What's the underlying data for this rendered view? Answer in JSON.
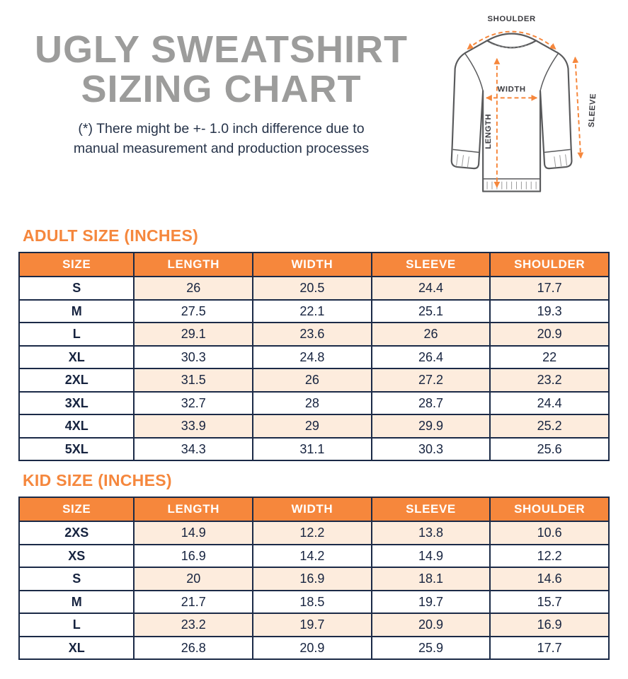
{
  "header": {
    "title_line1": "UGLY SWEATSHIRT",
    "title_line2": "SIZING CHART",
    "note_line1": "(*) There might be +- 1.0 inch difference due to",
    "note_line2": "manual measurement and production processes"
  },
  "diagram": {
    "labels": {
      "shoulder": "SHOULDER",
      "width": "WIDTH",
      "length": "LENGTH",
      "sleeve": "SLEEVE"
    }
  },
  "colors": {
    "accent_orange": "#F6873C",
    "table_border_navy": "#1B2A47",
    "text_navy": "#16233F",
    "row_stripe_peach": "#FDECDD",
    "title_gray": "#9C9C9B"
  },
  "chart_data": [
    {
      "type": "table",
      "title": "ADULT SIZE (INCHES)",
      "columns": [
        "SIZE",
        "LENGTH",
        "WIDTH",
        "SLEEVE",
        "SHOULDER"
      ],
      "rows": [
        [
          "S",
          26,
          20.5,
          24.4,
          17.7
        ],
        [
          "M",
          27.5,
          22.1,
          25.1,
          19.3
        ],
        [
          "L",
          29.1,
          23.6,
          26,
          20.9
        ],
        [
          "XL",
          30.3,
          24.8,
          26.4,
          22
        ],
        [
          "2XL",
          31.5,
          26,
          27.2,
          23.2
        ],
        [
          "3XL",
          32.7,
          28,
          28.7,
          24.4
        ],
        [
          "4XL",
          33.9,
          29,
          29.9,
          25.2
        ],
        [
          "5XL",
          34.3,
          31.1,
          30.3,
          25.6
        ]
      ]
    },
    {
      "type": "table",
      "title": "KID SIZE (INCHES)",
      "columns": [
        "SIZE",
        "LENGTH",
        "WIDTH",
        "SLEEVE",
        "SHOULDER"
      ],
      "rows": [
        [
          "2XS",
          14.9,
          12.2,
          13.8,
          10.6
        ],
        [
          "XS",
          16.9,
          14.2,
          14.9,
          12.2
        ],
        [
          "S",
          20,
          16.9,
          18.1,
          14.6
        ],
        [
          "M",
          21.7,
          18.5,
          19.7,
          15.7
        ],
        [
          "L",
          23.2,
          19.7,
          20.9,
          16.9
        ],
        [
          "XL",
          26.8,
          20.9,
          25.9,
          17.7
        ]
      ]
    }
  ]
}
